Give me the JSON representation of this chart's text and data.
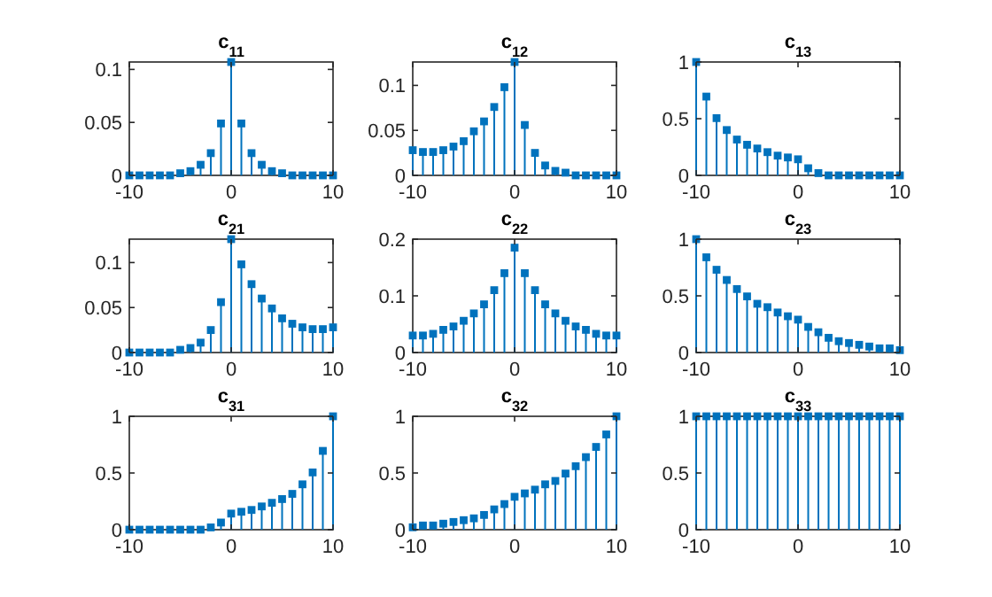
{
  "chart_data": [
    {
      "type": "lollipop",
      "title": "c$_{11}$",
      "color": "#0072bd",
      "marker": "square",
      "x": [
        -10,
        -9,
        -8,
        -7,
        -6,
        -5,
        -4,
        -3,
        -2,
        -1,
        0,
        1,
        2,
        3,
        4,
        5,
        6,
        7,
        8,
        9,
        10
      ],
      "values": [
        0,
        0,
        0,
        0,
        0,
        0.002,
        0.004,
        0.01,
        0.021,
        0.049,
        0.107,
        0.049,
        0.021,
        0.01,
        0.004,
        0.002,
        0,
        0,
        0,
        0,
        0
      ],
      "xlim": [
        -10,
        10
      ],
      "xticks": [
        -10,
        0,
        10
      ],
      "ylim": [
        0,
        0.107
      ],
      "yticks": [
        0,
        0.05,
        0.1
      ]
    },
    {
      "type": "lollipop",
      "title": "c$_{12}$",
      "color": "#0072bd",
      "marker": "square",
      "x": [
        -10,
        -9,
        -8,
        -7,
        -6,
        -5,
        -4,
        -3,
        -2,
        -1,
        0,
        1,
        2,
        3,
        4,
        5,
        6,
        7,
        8,
        9,
        10
      ],
      "values": [
        0.028,
        0.026,
        0.026,
        0.028,
        0.032,
        0.038,
        0.049,
        0.06,
        0.076,
        0.098,
        0.126,
        0.056,
        0.025,
        0.011,
        0.005,
        0.003,
        0,
        0,
        0,
        0,
        0
      ],
      "xlim": [
        -10,
        10
      ],
      "xticks": [
        -10,
        0,
        10
      ],
      "ylim": [
        0,
        0.126
      ],
      "yticks": [
        0,
        0.05,
        0.1
      ]
    },
    {
      "type": "lollipop",
      "title": "c$_{13}$",
      "color": "#0072bd",
      "marker": "square",
      "x": [
        -10,
        -9,
        -8,
        -7,
        -6,
        -5,
        -4,
        -3,
        -2,
        -1,
        0,
        1,
        2,
        3,
        4,
        5,
        6,
        7,
        8,
        9,
        10
      ],
      "values": [
        1,
        0.695,
        0.505,
        0.4,
        0.316,
        0.27,
        0.237,
        0.205,
        0.174,
        0.158,
        0.142,
        0.063,
        0.02,
        0,
        0,
        0,
        0,
        0,
        0,
        0,
        0
      ],
      "xlim": [
        -10,
        10
      ],
      "xticks": [
        -10,
        0,
        10
      ],
      "ylim": [
        0,
        1
      ],
      "yticks": [
        0,
        0.5,
        1
      ]
    },
    {
      "type": "lollipop",
      "title": "c$_{21}$",
      "color": "#0072bd",
      "marker": "square",
      "x": [
        -10,
        -9,
        -8,
        -7,
        -6,
        -5,
        -4,
        -3,
        -2,
        -1,
        0,
        1,
        2,
        3,
        4,
        5,
        6,
        7,
        8,
        9,
        10
      ],
      "values": [
        0,
        0,
        0,
        0,
        0,
        0.003,
        0.005,
        0.011,
        0.025,
        0.056,
        0.126,
        0.098,
        0.076,
        0.06,
        0.049,
        0.038,
        0.032,
        0.028,
        0.026,
        0.026,
        0.028
      ],
      "xlim": [
        -10,
        10
      ],
      "xticks": [
        -10,
        0,
        10
      ],
      "ylim": [
        0,
        0.126
      ],
      "yticks": [
        0,
        0.05,
        0.1
      ]
    },
    {
      "type": "lollipop",
      "title": "c$_{22}$",
      "color": "#0072bd",
      "marker": "square",
      "x": [
        -10,
        -9,
        -8,
        -7,
        -6,
        -5,
        -4,
        -3,
        -2,
        -1,
        0,
        1,
        2,
        3,
        4,
        5,
        6,
        7,
        8,
        9,
        10
      ],
      "values": [
        0.03,
        0.03,
        0.033,
        0.04,
        0.046,
        0.056,
        0.069,
        0.085,
        0.11,
        0.14,
        0.185,
        0.14,
        0.11,
        0.085,
        0.069,
        0.056,
        0.046,
        0.04,
        0.033,
        0.03,
        0.03
      ],
      "xlim": [
        -10,
        10
      ],
      "xticks": [
        -10,
        0,
        10
      ],
      "ylim": [
        0,
        0.2
      ],
      "yticks": [
        0,
        0.1,
        0.2
      ]
    },
    {
      "type": "lollipop",
      "title": "c$_{23}$",
      "color": "#0072bd",
      "marker": "square",
      "x": [
        -10,
        -9,
        -8,
        -7,
        -6,
        -5,
        -4,
        -3,
        -2,
        -1,
        0,
        1,
        2,
        3,
        4,
        5,
        6,
        7,
        8,
        9,
        10
      ],
      "values": [
        1,
        0.84,
        0.73,
        0.64,
        0.56,
        0.495,
        0.43,
        0.4,
        0.353,
        0.32,
        0.29,
        0.226,
        0.179,
        0.13,
        0.1,
        0.084,
        0.068,
        0.053,
        0.037,
        0.037,
        0.021
      ],
      "xlim": [
        -10,
        10
      ],
      "xticks": [
        -10,
        0,
        10
      ],
      "ylim": [
        0,
        1
      ],
      "yticks": [
        0,
        0.5,
        1
      ]
    },
    {
      "type": "lollipop",
      "title": "c$_{31}$",
      "color": "#0072bd",
      "marker": "square",
      "x": [
        -10,
        -9,
        -8,
        -7,
        -6,
        -5,
        -4,
        -3,
        -2,
        -1,
        0,
        1,
        2,
        3,
        4,
        5,
        6,
        7,
        8,
        9,
        10
      ],
      "values": [
        0,
        0,
        0,
        0,
        0,
        0,
        0,
        0,
        0.02,
        0.063,
        0.142,
        0.158,
        0.174,
        0.205,
        0.237,
        0.27,
        0.316,
        0.4,
        0.505,
        0.695,
        1
      ],
      "xlim": [
        -10,
        10
      ],
      "xticks": [
        -10,
        0,
        10
      ],
      "ylim": [
        0,
        1
      ],
      "yticks": [
        0,
        0.5,
        1
      ]
    },
    {
      "type": "lollipop",
      "title": "c$_{32}$",
      "color": "#0072bd",
      "marker": "square",
      "x": [
        -10,
        -9,
        -8,
        -7,
        -6,
        -5,
        -4,
        -3,
        -2,
        -1,
        0,
        1,
        2,
        3,
        4,
        5,
        6,
        7,
        8,
        9,
        10
      ],
      "values": [
        0.021,
        0.037,
        0.037,
        0.053,
        0.068,
        0.084,
        0.1,
        0.13,
        0.179,
        0.226,
        0.29,
        0.32,
        0.353,
        0.4,
        0.43,
        0.495,
        0.56,
        0.64,
        0.73,
        0.84,
        1
      ],
      "xlim": [
        -10,
        10
      ],
      "xticks": [
        -10,
        0,
        10
      ],
      "ylim": [
        0,
        1
      ],
      "yticks": [
        0,
        0.5,
        1
      ]
    },
    {
      "type": "lollipop",
      "title": "c$_{33}$",
      "color": "#0072bd",
      "marker": "square",
      "x": [
        -10,
        -9,
        -8,
        -7,
        -6,
        -5,
        -4,
        -3,
        -2,
        -1,
        0,
        1,
        2,
        3,
        4,
        5,
        6,
        7,
        8,
        9,
        10
      ],
      "values": [
        1,
        1,
        1,
        1,
        1,
        1,
        1,
        1,
        1,
        1,
        1,
        1,
        1,
        1,
        1,
        1,
        1,
        1,
        1,
        1,
        1
      ],
      "xlim": [
        -10,
        10
      ],
      "xticks": [
        -10,
        0,
        10
      ],
      "ylim": [
        0,
        1
      ],
      "yticks": [
        0,
        0.5,
        1
      ]
    }
  ]
}
